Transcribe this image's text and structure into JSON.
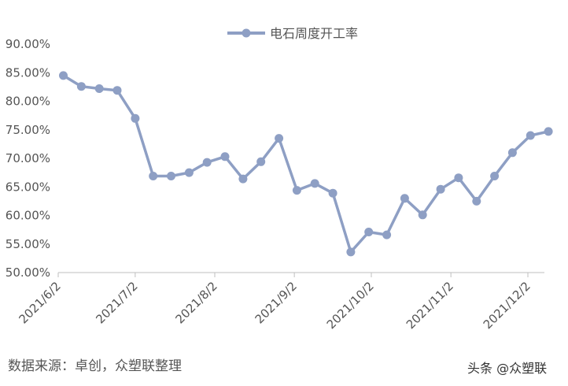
{
  "chart_data": {
    "type": "line",
    "title": "",
    "xlabel": "",
    "ylabel": "",
    "ylim": [
      50,
      90
    ],
    "y_ticks": [
      "90.00%",
      "85.00%",
      "80.00%",
      "75.00%",
      "70.00%",
      "65.00%",
      "60.00%",
      "55.00%",
      "50.00%"
    ],
    "y_tick_values": [
      90,
      85,
      80,
      75,
      70,
      65,
      60,
      55,
      50
    ],
    "x_ticks": [
      "2021/6/2",
      "2021/7/2",
      "2021/8/2",
      "2021/9/2",
      "2021/10/2",
      "2021/11/2",
      "2021/12/2"
    ],
    "x_tick_dates": [
      "2021-06-02",
      "2021-07-02",
      "2021-08-02",
      "2021-09-02",
      "2021-10-02",
      "2021-11-02",
      "2021-12-02"
    ],
    "legend_position": "top-center",
    "grid": false,
    "series": [
      {
        "name": "电石周度开工率",
        "color": "#8e9fc4",
        "x": [
          "2021-06-04",
          "2021-06-11",
          "2021-06-18",
          "2021-06-25",
          "2021-07-02",
          "2021-07-09",
          "2021-07-16",
          "2021-07-23",
          "2021-07-30",
          "2021-08-06",
          "2021-08-13",
          "2021-08-20",
          "2021-08-27",
          "2021-09-03",
          "2021-09-10",
          "2021-09-17",
          "2021-09-24",
          "2021-10-01",
          "2021-10-08",
          "2021-10-15",
          "2021-10-22",
          "2021-10-29",
          "2021-11-05",
          "2021-11-12",
          "2021-11-19",
          "2021-11-26",
          "2021-12-03",
          "2021-12-10"
        ],
        "values": [
          84.5,
          82.6,
          82.2,
          81.9,
          77.0,
          66.9,
          66.9,
          67.5,
          69.3,
          70.3,
          66.4,
          69.4,
          73.5,
          64.4,
          65.6,
          63.9,
          53.6,
          57.1,
          56.6,
          63.0,
          60.1,
          64.6,
          66.6,
          62.5,
          66.9,
          71.0,
          74.0,
          74.7
        ]
      }
    ]
  },
  "footer": {
    "source": "数据来源：卓创，众塑联整理",
    "watermark": "头条 @众塑联"
  }
}
